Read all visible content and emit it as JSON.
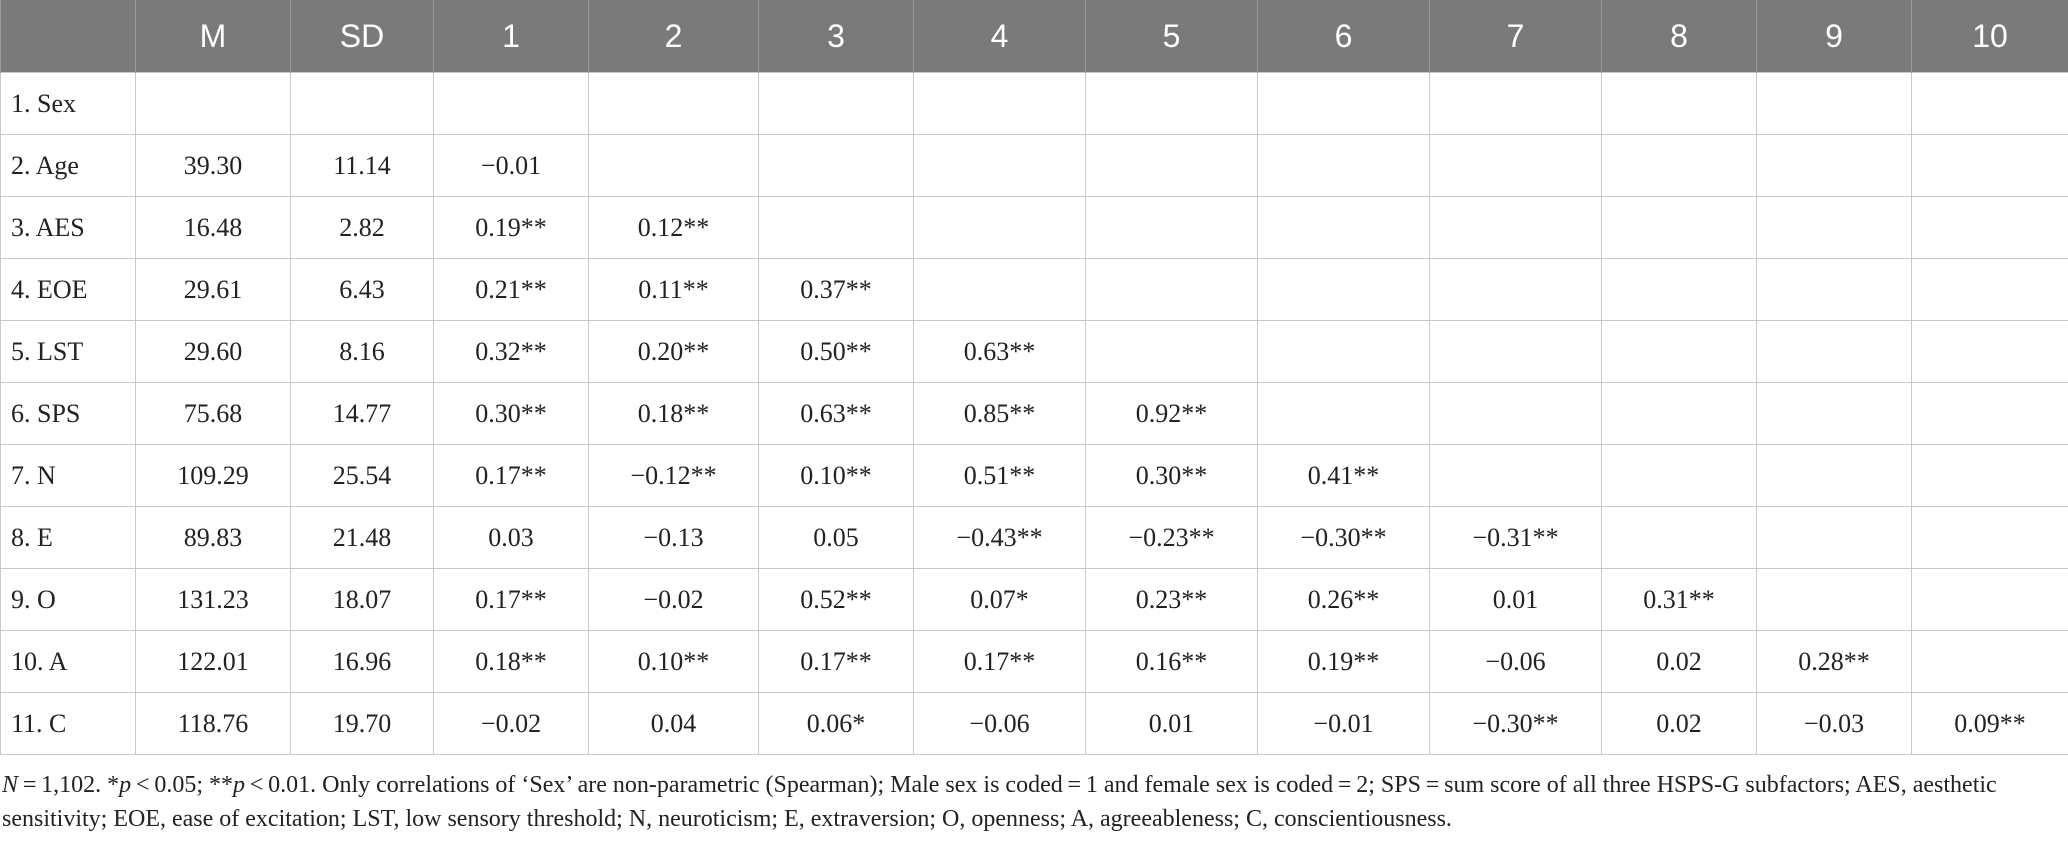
{
  "table": {
    "headers": [
      "",
      "M",
      "SD",
      "1",
      "2",
      "3",
      "4",
      "5",
      "6",
      "7",
      "8",
      "9",
      "10"
    ],
    "rows": [
      [
        "1. Sex",
        "",
        "",
        "",
        "",
        "",
        "",
        "",
        "",
        "",
        "",
        "",
        ""
      ],
      [
        "2. Age",
        "39.30",
        "11.14",
        "−0.01",
        "",
        "",
        "",
        "",
        "",
        "",
        "",
        "",
        ""
      ],
      [
        "3. AES",
        "16.48",
        "2.82",
        "0.19**",
        "0.12**",
        "",
        "",
        "",
        "",
        "",
        "",
        "",
        ""
      ],
      [
        "4. EOE",
        "29.61",
        "6.43",
        "0.21**",
        "0.11**",
        "0.37**",
        "",
        "",
        "",
        "",
        "",
        "",
        ""
      ],
      [
        "5. LST",
        "29.60",
        "8.16",
        "0.32**",
        "0.20**",
        "0.50**",
        "0.63**",
        "",
        "",
        "",
        "",
        "",
        ""
      ],
      [
        "6. SPS",
        "75.68",
        "14.77",
        "0.30**",
        "0.18**",
        "0.63**",
        "0.85**",
        "0.92**",
        "",
        "",
        "",
        "",
        ""
      ],
      [
        "7. N",
        "109.29",
        "25.54",
        "0.17**",
        "−0.12**",
        "0.10**",
        "0.51**",
        "0.30**",
        "0.41**",
        "",
        "",
        "",
        ""
      ],
      [
        "8. E",
        "89.83",
        "21.48",
        "0.03",
        "−0.13",
        "0.05",
        "−0.43**",
        "−0.23**",
        "−0.30**",
        "−0.31**",
        "",
        "",
        ""
      ],
      [
        "9. O",
        "131.23",
        "18.07",
        "0.17**",
        "−0.02",
        "0.52**",
        "0.07*",
        "0.23**",
        "0.26**",
        "0.01",
        "0.31**",
        "",
        ""
      ],
      [
        "10. A",
        "122.01",
        "16.96",
        "0.18**",
        "0.10**",
        "0.17**",
        "0.17**",
        "0.16**",
        "0.19**",
        "−0.06",
        "0.02",
        "0.28**",
        ""
      ],
      [
        "11. C",
        "118.76",
        "19.70",
        "−0.02",
        "0.04",
        "0.06*",
        "−0.06",
        "0.01",
        "−0.01",
        "−0.30**",
        "0.02",
        "−0.03",
        "0.09**"
      ]
    ]
  },
  "footnote": {
    "n_label": "N",
    "n_value": " = 1,102. *",
    "p1_label": "p",
    "p1_value": " < 0.05; **",
    "p2_label": "p",
    "p2_value": " < 0.01. Only correlations of ‘Sex’ are non-parametric (Spearman); Male sex is coded = 1 and female sex is coded = 2; SPS = sum score of all three HSPS-G subfactors; AES, aesthetic sensitivity; EOE, ease of excitation; LST, low sensory threshold; N, neuroticism; E, extraversion; O, openness; A, agreeableness; C, conscientiousness."
  }
}
